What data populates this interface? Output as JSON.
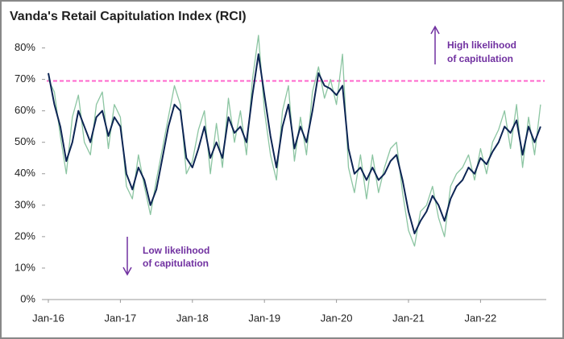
{
  "chart_data": {
    "type": "line",
    "title": "Vanda's Retail Capitulation Index (RCI)",
    "categories": [
      "Jan-16",
      null,
      null,
      null,
      null,
      null,
      null,
      null,
      null,
      null,
      null,
      null,
      "Jan-17",
      null,
      null,
      null,
      null,
      null,
      null,
      null,
      null,
      null,
      null,
      null,
      "Jan-18",
      null,
      null,
      null,
      null,
      null,
      null,
      null,
      null,
      null,
      null,
      null,
      "Jan-19",
      null,
      null,
      null,
      null,
      null,
      null,
      null,
      null,
      null,
      null,
      null,
      "Jan-20",
      null,
      null,
      null,
      null,
      null,
      null,
      null,
      null,
      null,
      null,
      null,
      "Jan-21",
      null,
      null,
      null,
      null,
      null,
      null,
      null,
      null,
      null,
      null,
      null,
      "Jan-22",
      null,
      null,
      null,
      null,
      null,
      null,
      null,
      null,
      null,
      null
    ],
    "series": [
      {
        "color": "#8cc5a2",
        "values": [
          70,
          66,
          52,
          40,
          58,
          65,
          50,
          46,
          62,
          66,
          48,
          62,
          58,
          36,
          32,
          46,
          36,
          27,
          38,
          48,
          58,
          68,
          62,
          40,
          44,
          54,
          60,
          40,
          56,
          42,
          64,
          50,
          60,
          46,
          70,
          84,
          60,
          46,
          38,
          60,
          68,
          44,
          58,
          46,
          66,
          74,
          64,
          70,
          62,
          78,
          42,
          34,
          46,
          32,
          46,
          34,
          42,
          48,
          50,
          34,
          22,
          17,
          28,
          30,
          36,
          26,
          20,
          36,
          40,
          42,
          46,
          38,
          48,
          40,
          50,
          54,
          60,
          48,
          62,
          42,
          58,
          46,
          62
        ]
      },
      {
        "color": "#0d2554",
        "values": [
          72,
          62,
          55,
          44,
          50,
          60,
          55,
          50,
          58,
          60,
          52,
          58,
          55,
          40,
          35,
          42,
          38,
          30,
          35,
          45,
          55,
          62,
          60,
          45,
          42,
          48,
          55,
          45,
          50,
          45,
          58,
          53,
          55,
          50,
          65,
          78,
          65,
          52,
          42,
          55,
          62,
          48,
          55,
          50,
          60,
          72,
          68,
          67,
          65,
          68,
          48,
          40,
          42,
          38,
          42,
          38,
          40,
          44,
          46,
          38,
          28,
          21,
          25,
          28,
          33,
          30,
          25,
          32,
          36,
          38,
          42,
          40,
          45,
          43,
          47,
          50,
          55,
          53,
          57,
          46,
          55,
          50,
          55
        ]
      }
    ],
    "threshold": 69.5,
    "ylim": [
      0,
      85
    ],
    "yticks": [
      {
        "value": 0,
        "label": "0%"
      },
      {
        "value": 10,
        "label": "10%"
      },
      {
        "value": 20,
        "label": "20%"
      },
      {
        "value": 30,
        "label": "30%"
      },
      {
        "value": 40,
        "label": "40%"
      },
      {
        "value": 50,
        "label": "50%"
      },
      {
        "value": 60,
        "label": "60%"
      },
      {
        "value": 70,
        "label": "70%"
      },
      {
        "value": 80,
        "label": "80%"
      }
    ],
    "annotations": {
      "high": [
        "High likelihood",
        "of capitulation"
      ],
      "low": [
        "Low likelihood",
        "of capitulation"
      ]
    }
  }
}
